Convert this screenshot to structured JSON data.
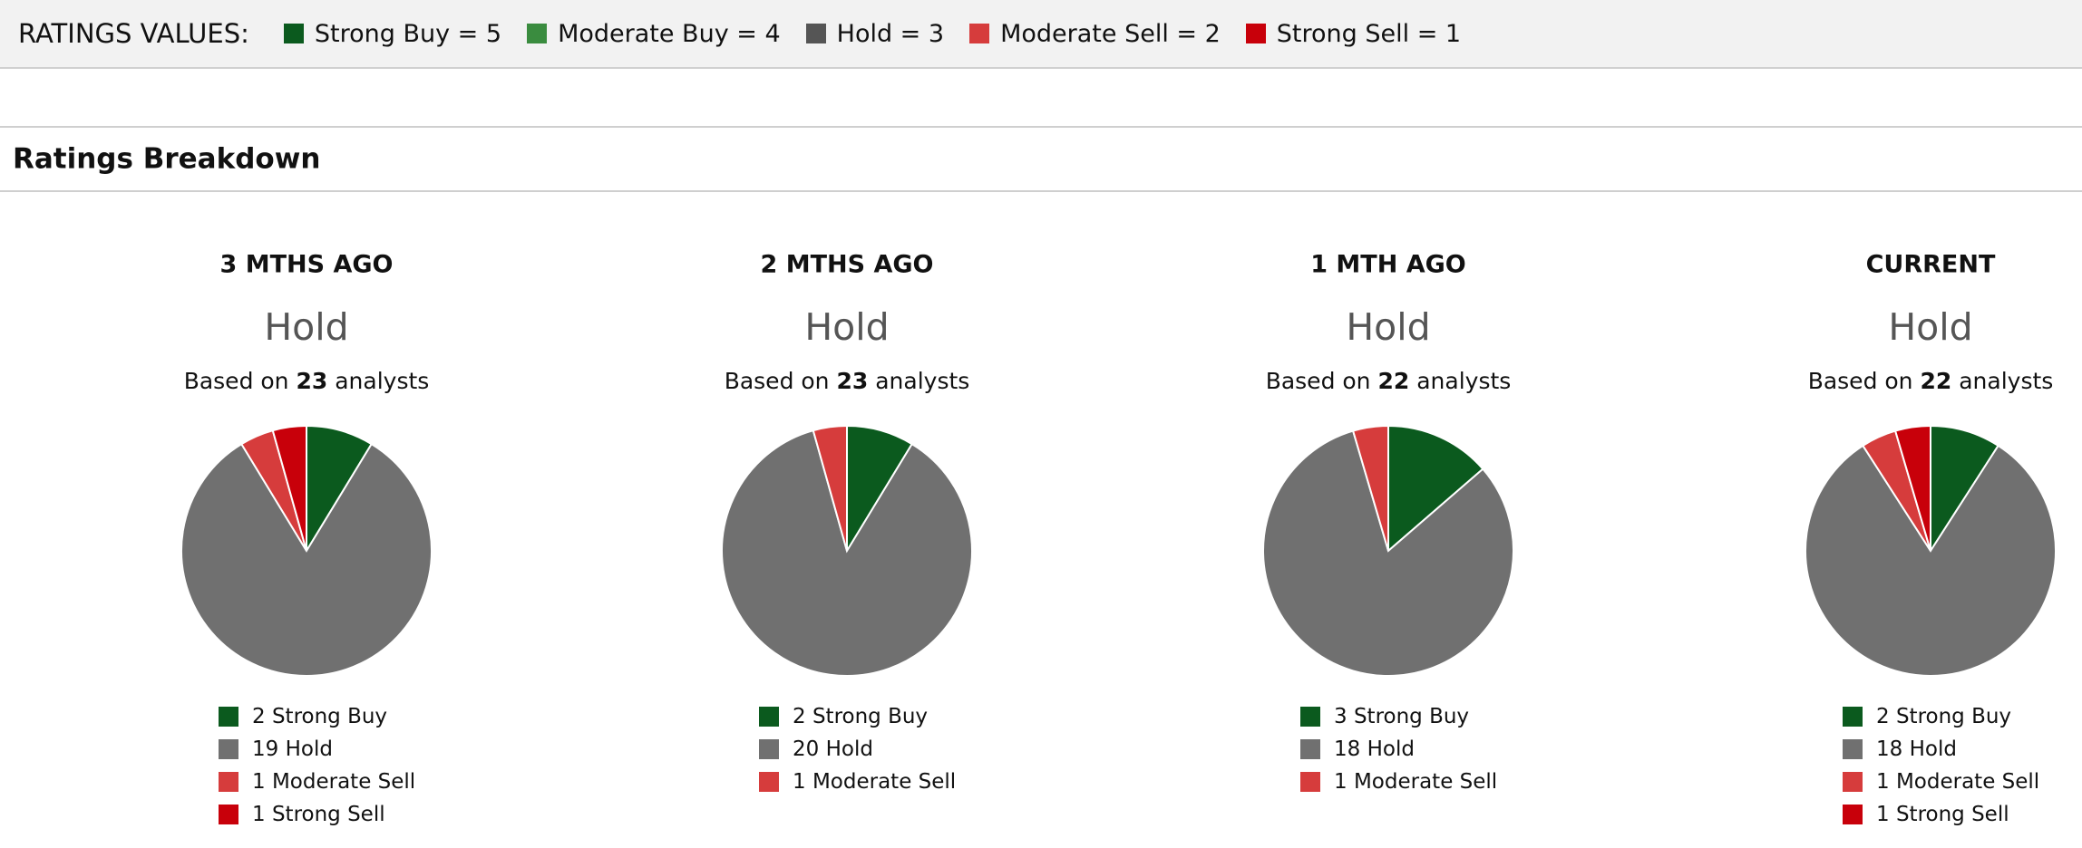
{
  "header": {
    "title": "RATINGS VALUES:",
    "legend": [
      {
        "label": "Strong Buy = 5",
        "color": "#0b5a1e"
      },
      {
        "label": "Moderate Buy = 4",
        "color": "#3a8c3f"
      },
      {
        "label": "Hold = 3",
        "color": "#555555"
      },
      {
        "label": "Moderate Sell = 2",
        "color": "#d63c3c"
      },
      {
        "label": "Strong Sell = 1",
        "color": "#c8000a"
      }
    ]
  },
  "section_title": "Ratings Breakdown",
  "chart_data": [
    {
      "type": "pie",
      "title": "3 MTHS AGO",
      "rating": "Hold",
      "based_on": "Based on",
      "analysts": 23,
      "analysts_suffix": "analysts",
      "categories": [
        "Strong Buy",
        "Hold",
        "Moderate Sell",
        "Strong Sell"
      ],
      "values": [
        2,
        19,
        1,
        1
      ],
      "colors": [
        "#0b5a1e",
        "#707070",
        "#d63c3c",
        "#c8000a"
      ]
    },
    {
      "type": "pie",
      "title": "2 MTHS AGO",
      "rating": "Hold",
      "based_on": "Based on",
      "analysts": 23,
      "analysts_suffix": "analysts",
      "categories": [
        "Strong Buy",
        "Hold",
        "Moderate Sell"
      ],
      "values": [
        2,
        20,
        1
      ],
      "colors": [
        "#0b5a1e",
        "#707070",
        "#d63c3c"
      ]
    },
    {
      "type": "pie",
      "title": "1 MTH AGO",
      "rating": "Hold",
      "based_on": "Based on",
      "analysts": 22,
      "analysts_suffix": "analysts",
      "categories": [
        "Strong Buy",
        "Hold",
        "Moderate Sell"
      ],
      "values": [
        3,
        18,
        1
      ],
      "colors": [
        "#0b5a1e",
        "#707070",
        "#d63c3c"
      ]
    },
    {
      "type": "pie",
      "title": "CURRENT",
      "rating": "Hold",
      "based_on": "Based on",
      "analysts": 22,
      "analysts_suffix": "analysts",
      "categories": [
        "Strong Buy",
        "Hold",
        "Moderate Sell",
        "Strong Sell"
      ],
      "values": [
        2,
        18,
        1,
        1
      ],
      "colors": [
        "#0b5a1e",
        "#707070",
        "#d63c3c",
        "#c8000a"
      ]
    }
  ]
}
